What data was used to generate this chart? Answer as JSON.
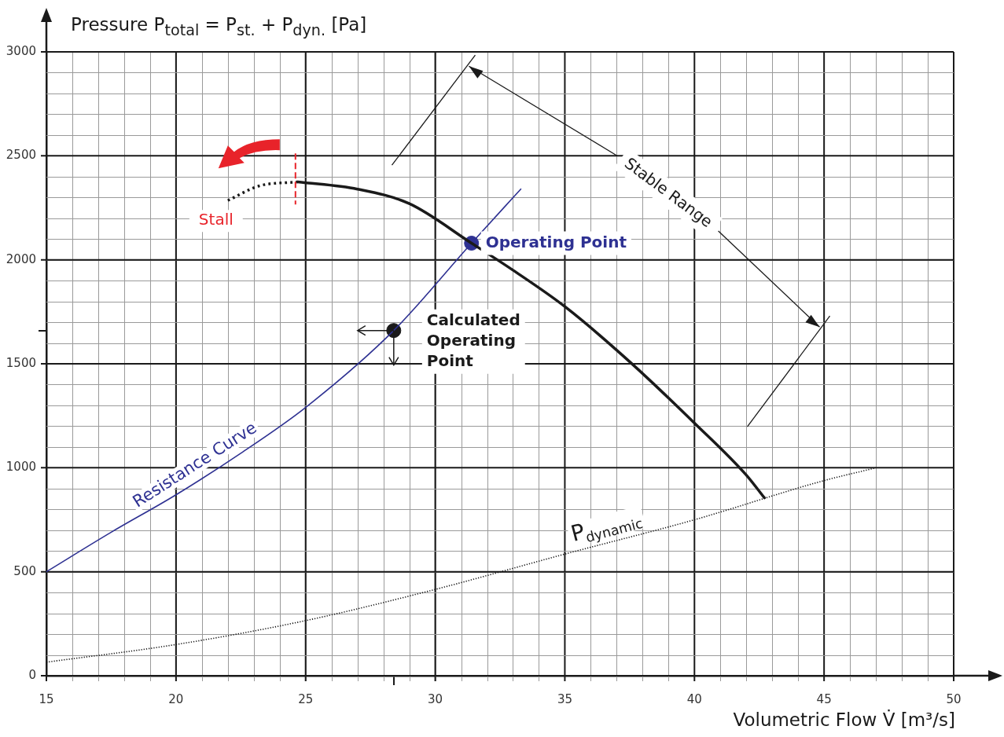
{
  "chart_data": {
    "type": "line",
    "ylabel": "Pressure P$_{total}$ = P$_{st.}$ + P$_{dyn.}$ [Pa]",
    "xlabel": "Volumetric Flow V̇ [m³/s]",
    "xlim": [
      15,
      50
    ],
    "xticks": [
      15,
      20,
      25,
      30,
      35,
      40,
      45,
      50,
      {
        "value": 28.4,
        "label": null
      }
    ],
    "ylim": [
      0,
      3000
    ],
    "yticks": [
      0,
      500,
      1000,
      1500,
      2000,
      2500,
      3000,
      {
        "value": 1660,
        "label": null
      }
    ],
    "grid": true,
    "series": [
      {
        "color": "#1a1a1a",
        "line_style": "solid",
        "marker": "none",
        "x": [
          24.7,
          27,
          29,
          31.4,
          33,
          35,
          37.5,
          40,
          42,
          42.7
        ],
        "values": [
          2375,
          2340,
          2270,
          2080,
          1950,
          1775,
          1510,
          1215,
          965,
          855
        ]
      },
      {
        "color": "#1a1a1a",
        "line_style": "dotted",
        "marker": "none",
        "x": [
          22.0,
          23.2,
          24.7
        ],
        "values": [
          2285,
          2355,
          2375
        ]
      },
      {
        "name": "Resistance Curve",
        "color": "#2e3192",
        "line_style": "solid",
        "marker": "none",
        "x": [
          15,
          17.5,
          20,
          22.5,
          25,
          28.4,
          31.4,
          33.3
        ],
        "values": [
          500,
          690,
          870,
          1070,
          1290,
          1660,
          2080,
          2340
        ]
      },
      {
        "name": "P$_{dynamic}$",
        "color": "#1a1a1a",
        "line_style": "dotted",
        "marker": "none",
        "x": [
          15,
          20,
          25,
          30,
          35,
          40,
          44.9,
          47
        ],
        "values": [
          65,
          150,
          265,
          415,
          585,
          750,
          935,
          1000
        ]
      },
      {
        "type": "scatter",
        "name": "Operating Point",
        "color": "#2e3192",
        "marker": "circle",
        "x": [
          31.4
        ],
        "values": [
          2080
        ]
      },
      {
        "type": "scatter",
        "name": "Calculated Operating Point",
        "color": "#1a1a1a",
        "marker": "circle",
        "x": [
          28.4
        ],
        "values": [
          1660
        ]
      }
    ],
    "annotations": [
      "Stall",
      "Stable Range"
    ]
  }
}
